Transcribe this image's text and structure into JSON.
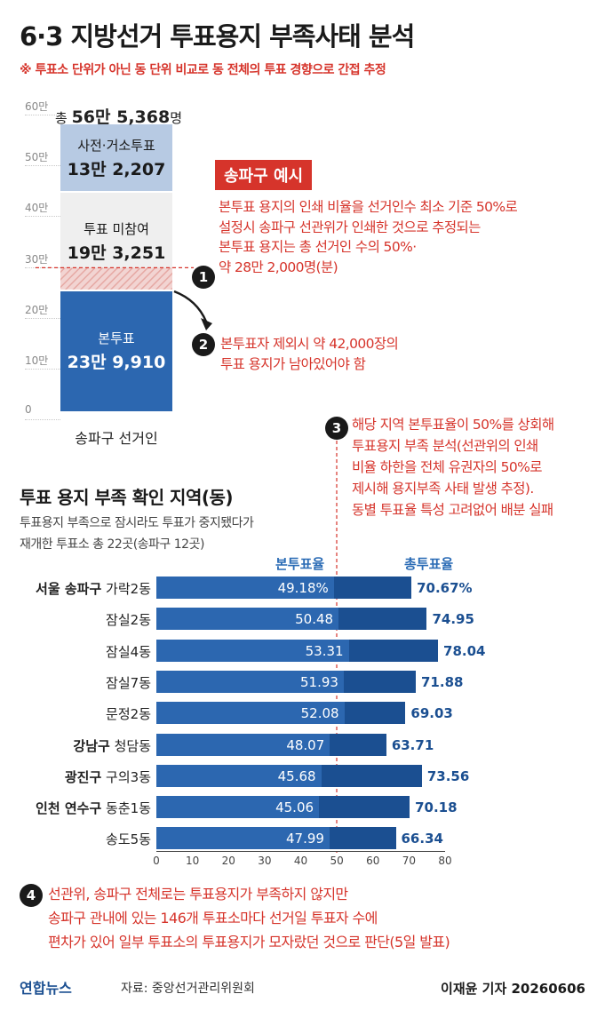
{
  "title": "6·3 지방선거 투표용지 부족사태 분석",
  "subtitle": "※ 투표소 단위가 아닌 동 단위 비교로 동 전체의 투표 경향으로 간접 추정",
  "colors": {
    "red": "#d6342b",
    "navy": "#1b4f91",
    "blue": "#2c67b0",
    "light_blue": "#b7cae3",
    "light_gray": "#efefef"
  },
  "stack": {
    "total_prefix": "총 ",
    "total_value": "56만 5,368",
    "total_suffix": "명",
    "xlabel": "송파구 선거인"
  },
  "example": {
    "tag": "송파구 예시",
    "lines": [
      "본투표 용지의 인쇄 비율을 선거인수 최소 기준 50%로",
      "설정시 송파구 선관위가 인쇄한 것으로 추정되는",
      "본투표 용지는 총 선거인 수의 50%·",
      "약 28만 2,000명(분)"
    ],
    "badge1": "1",
    "badge2": "2",
    "note2_lines": [
      "본투표자 제외시 약 42,000장의",
      "투표 용지가 남아있어야 함"
    ],
    "badge3": "3",
    "note3_lines": [
      "해당 지역 본투표율이 50%를 상회해",
      "투표용지 부족 분석(선관위의 인쇄",
      "비율 하한을 전체 유권자의 50%로",
      "제시해 용지부족 사태 발생 추정).",
      "동별 투표율 특성 고려없어 배분 실패"
    ]
  },
  "section": {
    "title": "투표 용지 부족 확인 지역(동)",
    "note1": "투표용지 부족으로 잠시라도 투표가 중지됐다가",
    "note2": "재개한 투표소 총 22곳(송파구 12곳)"
  },
  "footer": {
    "badge4": "4",
    "lines": [
      "선관위, 송파구 전체로는 투표용지가 부족하지 않지만",
      "송파구 관내에 있는 146개 투표소마다 선거일 투표자 수에",
      "편차가 있어 일부 투표소의 투표용지가 모자랐던 것으로 판단(5일 발표)"
    ],
    "logo": "연합뉴스",
    "source": "자료: 중앙선거관리위원회",
    "credit": "이재윤 기자 20260606"
  },
  "chart_data": [
    {
      "type": "bar",
      "stacked": true,
      "categories": [
        "송파구 선거인"
      ],
      "ylim": [
        0,
        60
      ],
      "yticks": [
        "0",
        "10만",
        "20만",
        "30만",
        "40만",
        "50만",
        "60만"
      ],
      "series": [
        {
          "name": "본투표",
          "value": 239910,
          "display": "23만 9,910"
        },
        {
          "name": "투표 미참여",
          "value": 193251,
          "display": "19만 3,251"
        },
        {
          "name": "사전·거소투표",
          "value": 132207,
          "display": "13만 2,207"
        }
      ],
      "threshold_percent": 50
    },
    {
      "type": "bar",
      "orientation": "horizontal",
      "xlim": [
        0,
        80
      ],
      "xticks": [
        "0",
        "10",
        "20",
        "30",
        "40",
        "50",
        "60",
        "70",
        "80"
      ],
      "series_names": [
        "본투표율",
        "총투표율"
      ],
      "rows": [
        {
          "group": "서울 송파구",
          "dong": "가락2동",
          "main": 49.18,
          "main_label": "49.18%",
          "total": 70.67,
          "total_label": "70.67%"
        },
        {
          "group": "",
          "dong": "잠실2동",
          "main": 50.48,
          "main_label": "50.48",
          "total": 74.95,
          "total_label": "74.95"
        },
        {
          "group": "",
          "dong": "잠실4동",
          "main": 53.31,
          "main_label": "53.31",
          "total": 78.04,
          "total_label": "78.04"
        },
        {
          "group": "",
          "dong": "잠실7동",
          "main": 51.93,
          "main_label": "51.93",
          "total": 71.88,
          "total_label": "71.88"
        },
        {
          "group": "",
          "dong": "문정2동",
          "main": 52.08,
          "main_label": "52.08",
          "total": 69.03,
          "total_label": "69.03"
        },
        {
          "group": "강남구",
          "dong": "청담동",
          "main": 48.07,
          "main_label": "48.07",
          "total": 63.71,
          "total_label": "63.71"
        },
        {
          "group": "광진구",
          "dong": "구의3동",
          "main": 45.68,
          "main_label": "45.68",
          "total": 73.56,
          "total_label": "73.56"
        },
        {
          "group": "인천 연수구",
          "dong": "동춘1동",
          "main": 45.06,
          "main_label": "45.06",
          "total": 70.18,
          "total_label": "70.18"
        },
        {
          "group": "",
          "dong": "송도5동",
          "main": 47.99,
          "main_label": "47.99",
          "total": 66.34,
          "total_label": "66.34"
        }
      ]
    }
  ]
}
